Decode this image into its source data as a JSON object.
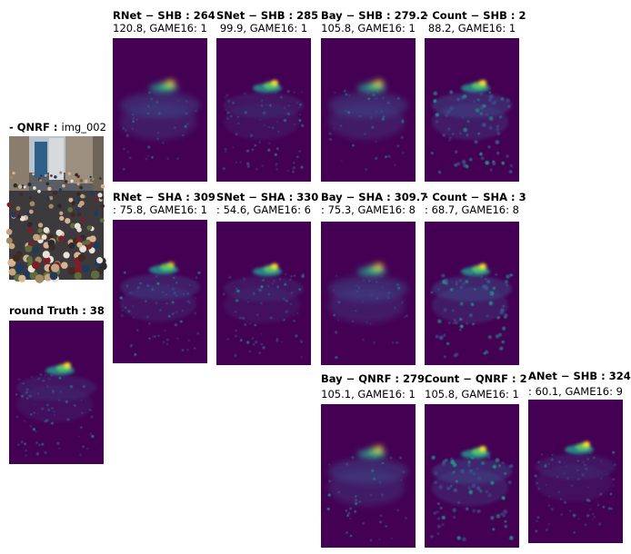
{
  "input_panel": {
    "title_prefix": "- QNRF :",
    "title_suffix": "img_002",
    "image_label": "photo of crowded street"
  },
  "ground_truth_panel": {
    "title": "round Truth : 38"
  },
  "panels": [
    {
      "id": "r1c1",
      "line1": "RNet − SHB : 264",
      "line2": "120.8, GAME16: 1"
    },
    {
      "id": "r1c2",
      "line1": "SNet − SHB : 285",
      "line2": "99.9, GAME16: 1"
    },
    {
      "id": "r1c3",
      "line1": "Bay − SHB : 279.2",
      "line2": "105.8, GAME16: 1"
    },
    {
      "id": "r1c4",
      "line1": "· Count − SHB : 2",
      "line2": "88.2, GAME16: 1"
    },
    {
      "id": "r2c1",
      "line1": "RNet − SHA : 309",
      "line2": ": 75.8, GAME16: 1"
    },
    {
      "id": "r2c2",
      "line1": "SNet − SHA : 330",
      "line2": ": 54.6, GAME16: 6"
    },
    {
      "id": "r2c3",
      "line1": "Bay − SHA : 309.7",
      "line2": ": 75.3, GAME16: 8"
    },
    {
      "id": "r2c4",
      "line1": "· Count − SHA : 3",
      "line2": ": 68.7, GAME16: 8"
    },
    {
      "id": "r3c3",
      "line1": "Bay − QNRF : 279.",
      "line2": "105.1, GAME16: 1"
    },
    {
      "id": "r3c4",
      "line1": "Count − QNRF : 2",
      "line2": "105.8, GAME16: 1"
    },
    {
      "id": "r3c5",
      "line1": "ANet − SHB : 324",
      "line2": ": 60.1, GAME16: 9"
    }
  ],
  "colors": {
    "heatmap_bg": "#440154",
    "heatmap_mid": "#3b528b",
    "heatmap_high": "#21918c",
    "heatmap_peak": "#5ec962",
    "heatmap_max": "#fde725"
  }
}
